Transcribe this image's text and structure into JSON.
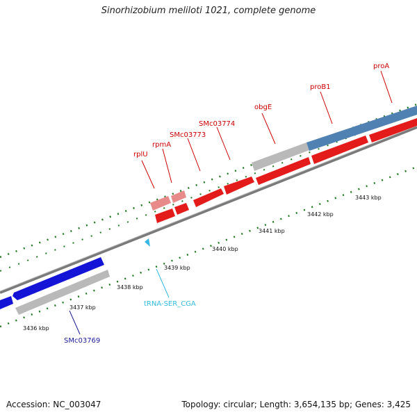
{
  "title": "Sinorhizobium meliloti 1021, complete genome",
  "footer": {
    "accession": "Accession: NC_003047",
    "stats": "Topology: circular; Length: 3,654,135 bp; Genes: 3,425"
  },
  "colors": {
    "forward_gene": "#e31b1b",
    "forward_gene_light": "#e98a8a",
    "reverse_gene": "#1414d6",
    "grey_cds": "#b9b9b9",
    "steel_cds": "#4f81b3",
    "trna": "#35b8e6",
    "tick": "#227722",
    "label_red": "#cc0000",
    "label_blue": "#1a1a99",
    "label_cyan": "#33bbdd"
  },
  "scale": {
    "labels": [
      "3436 kbp",
      "3437 kbp",
      "3438 kbp",
      "3439 kbp",
      "3440 kbp",
      "3441 kbp",
      "3442 kbp",
      "3443 kbp"
    ]
  },
  "gene_labels": [
    {
      "text": "rplU",
      "color": "label_red"
    },
    {
      "text": "rpmA",
      "color": "label_red"
    },
    {
      "text": "SMc03773",
      "color": "label_red"
    },
    {
      "text": "SMc03774",
      "color": "label_red"
    },
    {
      "text": "obgE",
      "color": "label_red"
    },
    {
      "text": "proB1",
      "color": "label_red"
    },
    {
      "text": "proA",
      "color": "label_red"
    },
    {
      "text": "tRNA-SER_CGA",
      "color": "label_cyan"
    },
    {
      "text": "SMc03769",
      "color": "label_blue"
    }
  ]
}
